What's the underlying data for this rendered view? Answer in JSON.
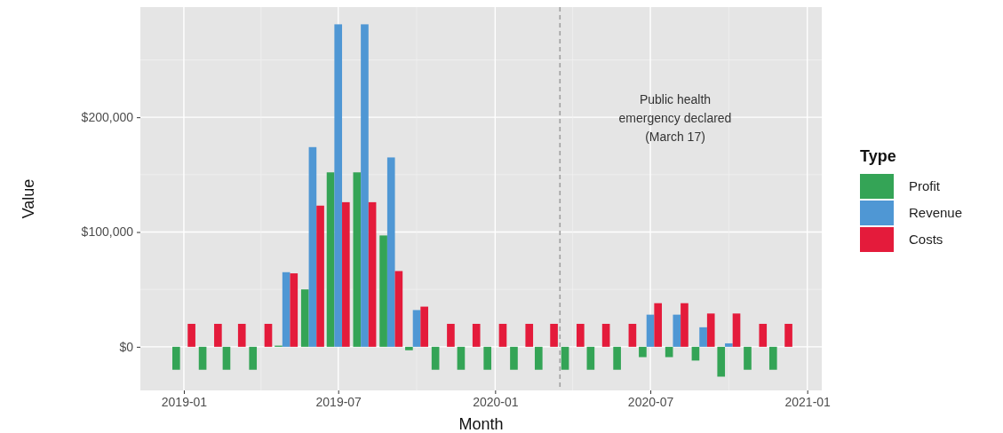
{
  "chart_data": {
    "type": "bar",
    "xlabel": "Month",
    "ylabel": "Value",
    "legend_title": "Type",
    "legend": "right",
    "grid": true,
    "x": [
      "2019-01",
      "2019-02",
      "2019-03",
      "2019-04",
      "2019-05",
      "2019-06",
      "2019-07",
      "2019-08",
      "2019-09",
      "2019-10",
      "2019-11",
      "2019-12",
      "2020-01",
      "2020-02",
      "2020-03",
      "2020-04",
      "2020-05",
      "2020-06",
      "2020-07",
      "2020-08",
      "2020-09",
      "2020-10",
      "2020-11",
      "2020-12"
    ],
    "series": [
      {
        "name": "Profit",
        "color": "#34a456",
        "values": [
          -20000,
          -20000,
          -20000,
          -20000,
          1000,
          50000,
          152000,
          152000,
          97000,
          -3000,
          -20000,
          -20000,
          -20000,
          -20000,
          -20000,
          -20000,
          -20000,
          -20000,
          -9000,
          -9000,
          -12000,
          -26000,
          -20000,
          -20000
        ]
      },
      {
        "name": "Revenue",
        "color": "#4f97d4",
        "values": [
          null,
          null,
          null,
          null,
          65000,
          174000,
          281000,
          281000,
          165000,
          32000,
          null,
          null,
          null,
          null,
          null,
          null,
          null,
          null,
          28000,
          28000,
          17000,
          3000,
          null,
          null
        ]
      },
      {
        "name": "Costs",
        "color": "#e41b3b",
        "values": [
          20000,
          20000,
          20000,
          20000,
          64000,
          123000,
          126000,
          126000,
          66000,
          35000,
          20000,
          20000,
          20000,
          20000,
          20000,
          20000,
          20000,
          20000,
          38000,
          38000,
          29000,
          29000,
          20000,
          20000
        ]
      }
    ],
    "xlim": [
      "2018-11-11",
      "2021-01-18"
    ],
    "xticks": [
      "2019-01",
      "2019-07",
      "2020-01",
      "2020-07",
      "2021-01"
    ],
    "ylim": [
      -38000,
      296000
    ],
    "yticks": [
      {
        "value": 0,
        "label": "$0"
      },
      {
        "value": 100000,
        "label": "$100,000"
      },
      {
        "value": 200000,
        "label": "$200,000"
      }
    ],
    "ref_lines": [
      {
        "axis": "x",
        "value": "2020-03-17",
        "color": "#a0a0a0",
        "line_style": "dashed"
      }
    ],
    "annotations": [
      "Public health\nemergency declared\n(March 17)"
    ]
  }
}
